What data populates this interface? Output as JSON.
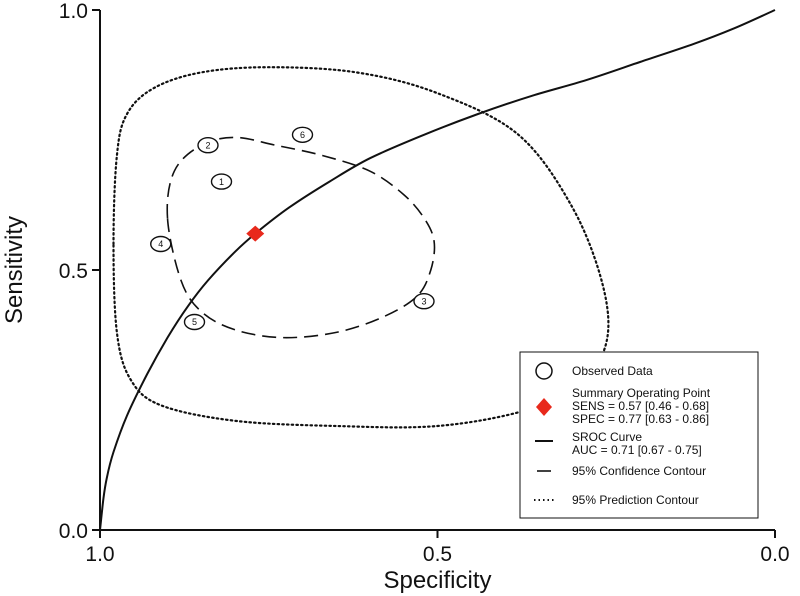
{
  "chart_data": {
    "type": "scatter",
    "xlabel": "Specificity",
    "ylabel": "Sensitivity",
    "xlim": [
      1.0,
      0.0
    ],
    "ylim": [
      0.0,
      1.0
    ],
    "x_reversed": true,
    "x_ticks": [
      "1.0",
      "0.5",
      "0.0"
    ],
    "y_ticks": [
      "0.0",
      "0.5",
      "1.0"
    ],
    "grid": false,
    "legend_position": "bottom-right",
    "colors": {
      "summary_point": "#e8291c",
      "lines": "#111111"
    },
    "observed_data": [
      {
        "label": "1",
        "specificity": 0.82,
        "sensitivity": 0.67
      },
      {
        "label": "2",
        "specificity": 0.84,
        "sensitivity": 0.74
      },
      {
        "label": "3",
        "specificity": 0.52,
        "sensitivity": 0.44
      },
      {
        "label": "4",
        "specificity": 0.91,
        "sensitivity": 0.55
      },
      {
        "label": "5",
        "specificity": 0.86,
        "sensitivity": 0.4
      },
      {
        "label": "6",
        "specificity": 0.7,
        "sensitivity": 0.76
      }
    ],
    "summary_point": {
      "specificity": 0.77,
      "sensitivity": 0.57
    },
    "sroc_curve": {
      "specificity": [
        1.0,
        0.995,
        0.99,
        0.98,
        0.96,
        0.93,
        0.9,
        0.87,
        0.84,
        0.8,
        0.77,
        0.72,
        0.66,
        0.6,
        0.52,
        0.44,
        0.36,
        0.28,
        0.2,
        0.12,
        0.06,
        0.0
      ],
      "sensitivity": [
        0.0,
        0.06,
        0.1,
        0.15,
        0.22,
        0.3,
        0.37,
        0.43,
        0.48,
        0.535,
        0.57,
        0.62,
        0.67,
        0.715,
        0.76,
        0.8,
        0.835,
        0.865,
        0.9,
        0.935,
        0.965,
        1.0
      ]
    },
    "confidence_contour": {
      "specificity": [
        0.9,
        0.89,
        0.85,
        0.8,
        0.74,
        0.67,
        0.6,
        0.55,
        0.52,
        0.505,
        0.51,
        0.53,
        0.58,
        0.65,
        0.73,
        0.8,
        0.85,
        0.88,
        0.9
      ],
      "sensitivity": [
        0.6,
        0.69,
        0.74,
        0.755,
        0.74,
        0.72,
        0.69,
        0.645,
        0.6,
        0.555,
        0.5,
        0.45,
        0.41,
        0.38,
        0.37,
        0.385,
        0.42,
        0.48,
        0.6
      ]
    },
    "prediction_contour": {
      "specificity": [
        0.98,
        0.975,
        0.96,
        0.92,
        0.85,
        0.75,
        0.62,
        0.5,
        0.38,
        0.3,
        0.255,
        0.25,
        0.29,
        0.37,
        0.5,
        0.65,
        0.8,
        0.91,
        0.955,
        0.975,
        0.98
      ],
      "sensitivity": [
        0.55,
        0.72,
        0.8,
        0.85,
        0.88,
        0.89,
        0.88,
        0.84,
        0.76,
        0.62,
        0.47,
        0.36,
        0.28,
        0.23,
        0.2,
        0.2,
        0.21,
        0.24,
        0.29,
        0.38,
        0.55
      ]
    },
    "legend": {
      "observed": "Observed Data",
      "summary_title": "Summary Operating Point",
      "sens": "SENS = 0.57 [0.46 - 0.68]",
      "spec": "SPEC = 0.77 [0.63 - 0.86]",
      "sroc_title": "SROC Curve",
      "auc": "AUC = 0.71 [0.67 - 0.75]",
      "confidence": "95% Confidence Contour",
      "prediction": "95% Prediction Contour"
    }
  }
}
